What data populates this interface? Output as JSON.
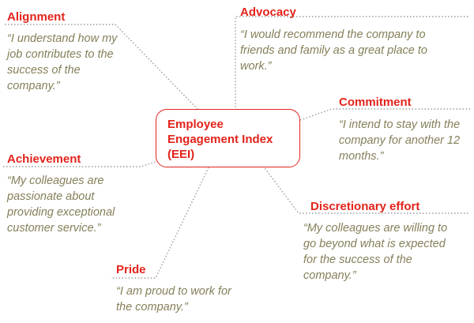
{
  "center": {
    "label": "Employee Engagement Index (EEI)"
  },
  "nodes": {
    "alignment": {
      "title": "Alignment",
      "quote": "“I understand how my job contributes to the success of the company.”"
    },
    "advocacy": {
      "title": "Advocacy",
      "quote": "“I would recommend the company to friends and family as a great place to work.”"
    },
    "commitment": {
      "title": "Commitment",
      "quote": "“I intend to stay with the company for another 12 months.”"
    },
    "achievement": {
      "title": "Achievement",
      "quote": "“My colleagues are passionate about providing exceptional customer service.”"
    },
    "discretionary": {
      "title": "Discretionary effort",
      "quote": "“My colleagues are willing to go beyond what is expected for the success of the company.”"
    },
    "pride": {
      "title": "Pride",
      "quote": "“I am proud to work for the company.”"
    }
  },
  "colors": {
    "accent": "#e3231b",
    "quote_text": "#857f59",
    "connector": "#9c9c9c"
  }
}
